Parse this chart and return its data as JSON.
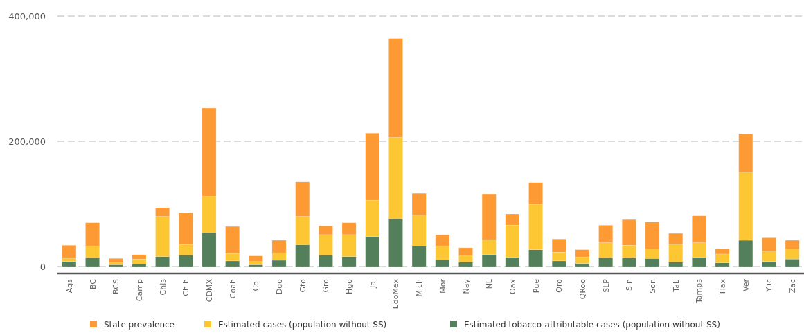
{
  "chart_data": {
    "type": "bar",
    "stacked": true,
    "categories": [
      "Ags",
      "BC",
      "BCS",
      "Camp",
      "Chis",
      "Chih",
      "CDMX",
      "Coah",
      "Col",
      "Dgo",
      "Gto",
      "Gro",
      "Hgo",
      "Jal",
      "EdoMex",
      "Mich",
      "Mor",
      "Nay",
      "NL",
      "Oax",
      "Pue",
      "Qro",
      "QRoo",
      "SLP",
      "Sin",
      "Son",
      "Tab",
      "Tamps",
      "Tlax",
      "Ver",
      "Yuc",
      "Zac"
    ],
    "series": [
      {
        "name": "Estimated tobacco-attributable cases (population without SS)",
        "color": "#53805a",
        "values": [
          8000,
          14000,
          3000,
          4000,
          16000,
          18000,
          54000,
          9000,
          3000,
          10000,
          35000,
          18000,
          16000,
          48000,
          76000,
          33000,
          11000,
          7000,
          19000,
          15000,
          27000,
          9000,
          5000,
          14000,
          14000,
          13000,
          7000,
          15000,
          6000,
          42000,
          8000,
          12000
        ]
      },
      {
        "name": "Estimated cases (population without SS)",
        "color": "#fdc733",
        "values": [
          6000,
          19000,
          3000,
          8000,
          64000,
          17000,
          58000,
          12000,
          5000,
          12000,
          45000,
          33000,
          35000,
          58000,
          130000,
          49000,
          22000,
          10000,
          24000,
          51000,
          72000,
          14000,
          10000,
          24000,
          20000,
          15000,
          29000,
          23000,
          14000,
          109000,
          17000,
          16000
        ]
      },
      {
        "name": "State prevalence",
        "color": "#fd9a33",
        "values": [
          20000,
          37000,
          7000,
          7000,
          14000,
          51000,
          141000,
          43000,
          9000,
          20000,
          55000,
          14000,
          19000,
          107000,
          158000,
          35000,
          18000,
          13000,
          73000,
          18000,
          35000,
          21000,
          12000,
          28000,
          41000,
          43000,
          17000,
          43000,
          8000,
          61000,
          21000,
          14000
        ]
      }
    ],
    "ylim": [
      -11000,
      400000
    ],
    "yticks": [
      {
        "value": 0,
        "label": "0"
      },
      {
        "value": 200000,
        "label": "200,000"
      },
      {
        "value": 400000,
        "label": "400,000"
      }
    ],
    "grid": "y",
    "legend": "bottom"
  }
}
